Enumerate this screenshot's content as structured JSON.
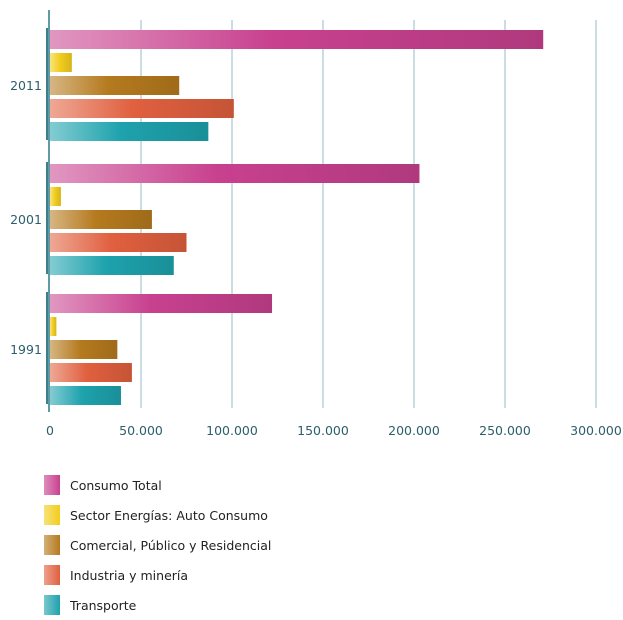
{
  "chart_data": {
    "type": "bar",
    "orientation": "horizontal",
    "title": "",
    "xlabel": "",
    "ylabel": "",
    "categories": [
      "2011",
      "2001",
      "1991"
    ],
    "series": [
      {
        "name": "Consumo Total",
        "color": "#c8418f",
        "values": [
          271000,
          203000,
          122000
        ]
      },
      {
        "name": "Sector Energías: Auto Consumo",
        "color": "#f2cd1e",
        "values": [
          12000,
          6000,
          3500
        ]
      },
      {
        "name": "Comercial, Público y Residencial",
        "color": "#b57a1e",
        "values": [
          71000,
          56000,
          37000
        ]
      },
      {
        "name": "Industria y minería",
        "color": "#e0603f",
        "values": [
          101000,
          75000,
          45000
        ]
      },
      {
        "name": "Transporte",
        "color": "#1ea2ad",
        "values": [
          87000,
          68000,
          39000
        ]
      }
    ],
    "xlim": [
      0,
      300000
    ],
    "xticks": [
      0,
      50000,
      100000,
      150000,
      200000,
      250000,
      300000
    ],
    "xtick_labels": [
      "0",
      "50.000",
      "100.000",
      "150.000",
      "200.000",
      "250.000",
      "300.000"
    ],
    "grid": true,
    "legend_position": "bottom"
  }
}
